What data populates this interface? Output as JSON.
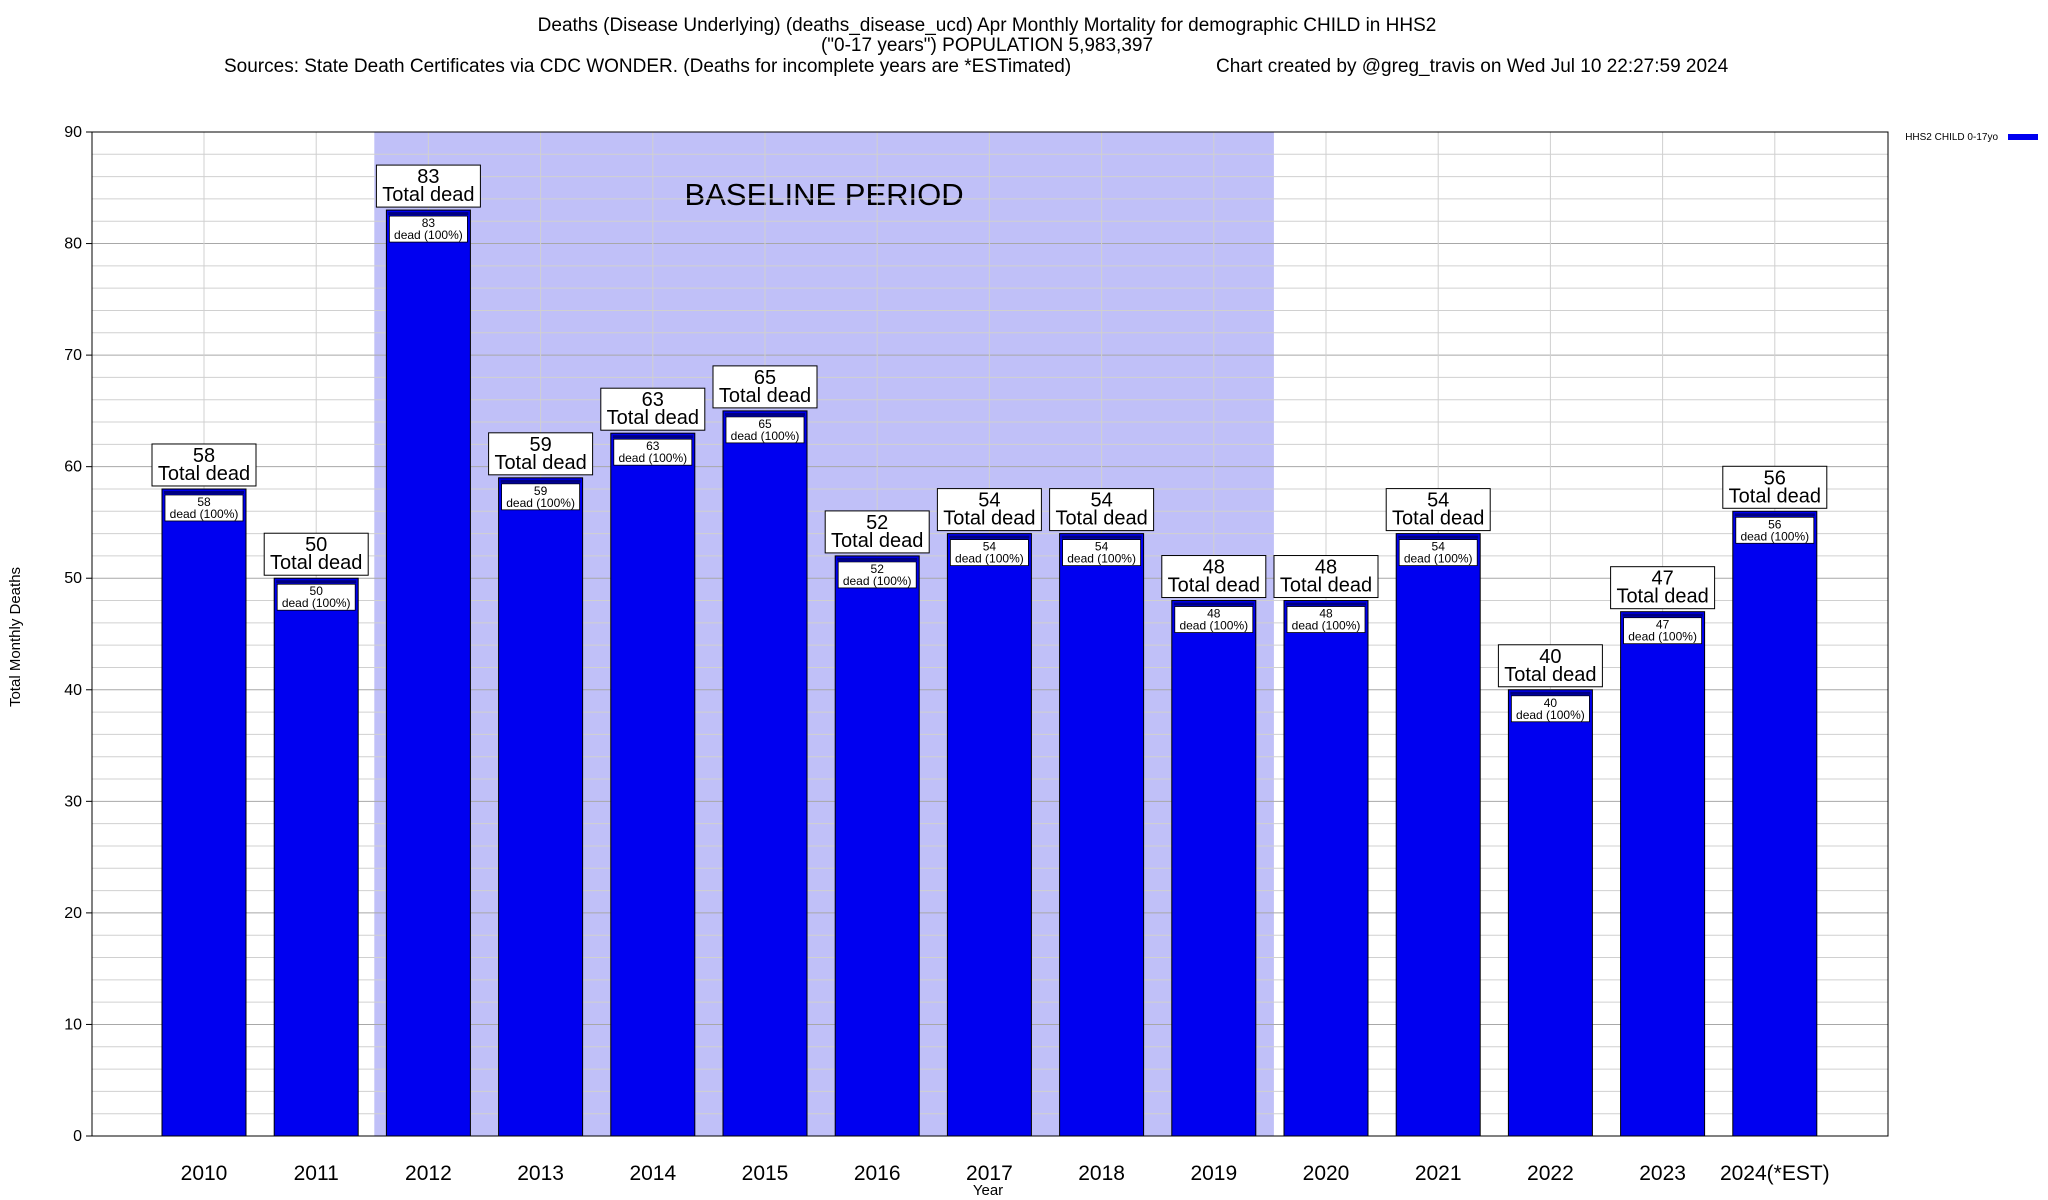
{
  "header": {
    "title_line1": "Deaths (Disease Underlying) (deaths_disease_ucd) Apr Monthly Mortality for demographic CHILD in HHS2",
    "title_line2": "(\"0-17 years\") POPULATION 5,983,397",
    "title_line3_left": "Sources: State Death Certificates via CDC WONDER. (Deaths for incomplete years are *ESTimated)",
    "title_line3_right": "Chart created by @greg_travis on Wed Jul 10 22:27:59 2024"
  },
  "chart_data": {
    "type": "bar",
    "xlabel": "Year",
    "ylabel": "Total Monthly Deaths",
    "ylim": [
      0,
      90
    ],
    "y_ticks": [
      0,
      10,
      20,
      30,
      40,
      50,
      60,
      70,
      80,
      90
    ],
    "grid": true,
    "legend_position": "top-right",
    "categories": [
      "2010",
      "2011",
      "2012",
      "2013",
      "2014",
      "2015",
      "2016",
      "2017",
      "2018",
      "2019",
      "2020",
      "2021",
      "2022",
      "2023",
      "2024(*EST)"
    ],
    "series": [
      {
        "name": "HHS2 CHILD 0-17yo",
        "color": "#0000f0",
        "values": [
          58,
          50,
          83,
          59,
          63,
          65,
          52,
          54,
          54,
          48,
          48,
          54,
          40,
          47,
          56
        ]
      }
    ],
    "bar_label_total_text": "Total dead",
    "bar_label_inner_text": "dead (100%)",
    "baseline_period": {
      "label": "BASELINE PERIOD",
      "start": "2012",
      "end": "2019",
      "color": "#c0c0f8"
    }
  }
}
